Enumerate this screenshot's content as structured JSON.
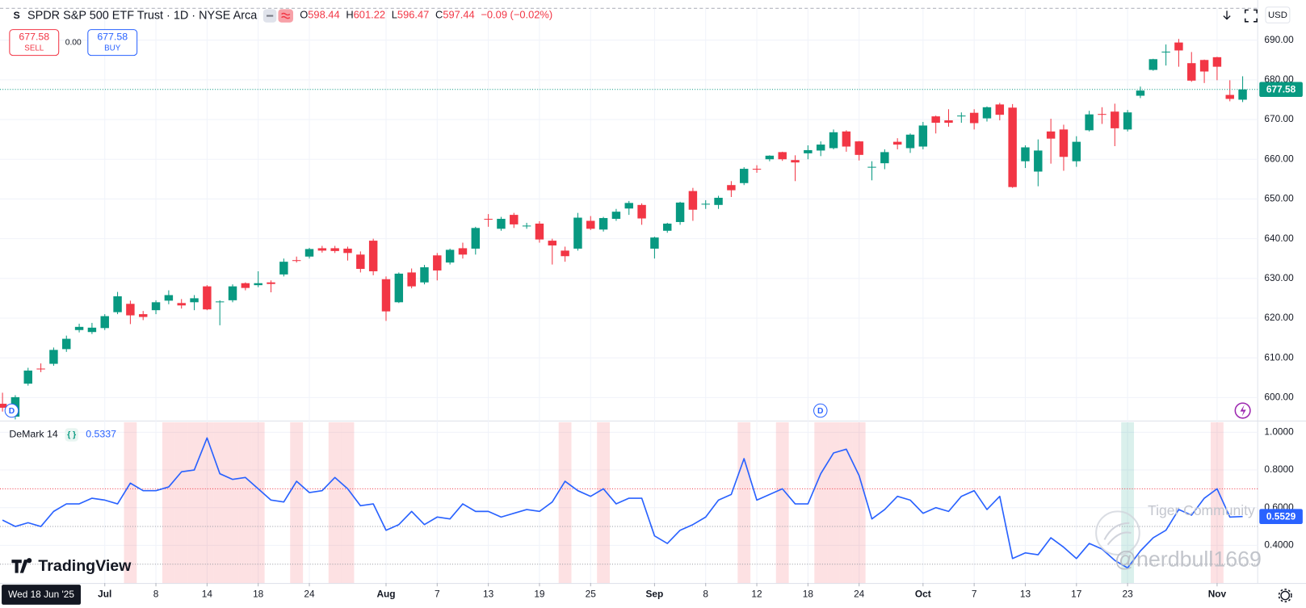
{
  "header": {
    "symbol_icon": "S",
    "title": "SPDR S&P 500 ETF Trust · 1D · NYSE Arca",
    "ohlc_keys": [
      "O",
      "H",
      "L",
      "C"
    ],
    "change": "−0.09 (−0.02%)"
  },
  "trade": {
    "sell": "SELL",
    "spread": "0.00",
    "buy": "BUY"
  },
  "currency": "USD",
  "dividend_marker": "D",
  "crosshair_date": "Wed 18 Jun '25",
  "brand": "TradingView",
  "watermark": [
    "Tiger Community",
    "@nerdbull1669"
  ],
  "chart_data": [
    {
      "type": "candlestick",
      "up_color": "#089981",
      "down_color": "#f23645",
      "x": [
        "2025-06-18",
        "2025-06-20",
        "2025-06-23",
        "2025-06-24",
        "2025-06-25",
        "2025-06-26",
        "2025-06-27",
        "2025-06-30",
        "2025-07-01",
        "2025-07-02",
        "2025-07-03",
        "2025-07-07",
        "2025-07-08",
        "2025-07-09",
        "2025-07-10",
        "2025-07-11",
        "2025-07-14",
        "2025-07-15",
        "2025-07-16",
        "2025-07-17",
        "2025-07-18",
        "2025-07-21",
        "2025-07-22",
        "2025-07-23",
        "2025-07-24",
        "2025-07-25",
        "2025-07-28",
        "2025-07-29",
        "2025-07-30",
        "2025-07-31",
        "2025-08-01",
        "2025-08-04",
        "2025-08-05",
        "2025-08-06",
        "2025-08-07",
        "2025-08-08",
        "2025-08-11",
        "2025-08-12",
        "2025-08-13",
        "2025-08-14",
        "2025-08-15",
        "2025-08-18",
        "2025-08-19",
        "2025-08-20",
        "2025-08-21",
        "2025-08-22",
        "2025-08-25",
        "2025-08-26",
        "2025-08-27",
        "2025-08-28",
        "2025-08-29",
        "2025-09-02",
        "2025-09-03",
        "2025-09-04",
        "2025-09-05",
        "2025-09-08",
        "2025-09-09",
        "2025-09-10",
        "2025-09-11",
        "2025-09-12",
        "2025-09-15",
        "2025-09-16",
        "2025-09-17",
        "2025-09-18",
        "2025-09-19",
        "2025-09-22",
        "2025-09-23",
        "2025-09-24",
        "2025-09-25",
        "2025-09-26",
        "2025-09-29",
        "2025-09-30",
        "2025-10-01",
        "2025-10-02",
        "2025-10-03",
        "2025-10-06",
        "2025-10-07",
        "2025-10-08",
        "2025-10-09",
        "2025-10-10",
        "2025-10-13",
        "2025-10-14",
        "2025-10-15",
        "2025-10-16",
        "2025-10-17",
        "2025-10-20",
        "2025-10-21",
        "2025-10-22",
        "2025-10-23",
        "2025-10-24",
        "2025-10-27",
        "2025-10-28",
        "2025-10-29",
        "2025-10-30",
        "2025-10-31",
        "2025-11-03",
        "2025-11-04",
        "2025-11-05"
      ],
      "open": [
        598.44,
        595.2,
        603.5,
        607.3,
        608.5,
        612.2,
        617.0,
        616.5,
        617.5,
        621.5,
        623.6,
        621.0,
        622.0,
        624.4,
        623.8,
        624.0,
        628.0,
        624.0,
        624.5,
        628.8,
        628.3,
        629.0,
        631.0,
        634.6,
        635.5,
        637.6,
        637.6,
        637.5,
        636.0,
        639.5,
        629.8,
        624.0,
        631.5,
        629.0,
        635.8,
        634.0,
        637.6,
        637.5,
        645.0,
        642.5,
        646.0,
        643.2,
        643.8,
        639.5,
        637.0,
        637.5,
        644.5,
        642.3,
        645.0,
        647.6,
        648.5,
        637.5,
        642.0,
        644.2,
        652.0,
        648.6,
        648.5,
        653.5,
        654.0,
        657.6,
        660.0,
        661.8,
        659.8,
        661.5,
        662.2,
        662.8,
        667.0,
        664.5,
        658.0,
        659.0,
        664.4,
        662.8,
        663.2,
        670.8,
        669.8,
        670.8,
        671.7,
        670.3,
        673.8,
        673.0,
        659.5,
        656.9,
        667.0,
        667.5,
        659.5,
        667.3,
        671.4,
        672.0,
        667.5,
        676.0,
        682.5,
        687.1,
        689.4,
        684.2,
        685.0,
        685.7,
        676.2,
        675.0
      ],
      "high": [
        601.22,
        600.6,
        607.5,
        608.6,
        612.6,
        615.6,
        618.6,
        618.8,
        621.0,
        626.6,
        624.4,
        621.8,
        624.5,
        627.0,
        624.8,
        625.8,
        628.3,
        624.5,
        628.5,
        629.0,
        631.8,
        629.5,
        635.0,
        635.5,
        637.7,
        638.2,
        638.2,
        638.0,
        636.8,
        640.0,
        630.5,
        631.5,
        632.5,
        633.4,
        636.4,
        637.5,
        639.0,
        643.0,
        646.2,
        645.5,
        646.5,
        644.0,
        644.4,
        640.0,
        638.0,
        646.5,
        645.7,
        645.5,
        647.5,
        649.5,
        648.9,
        640.5,
        644.0,
        649.3,
        652.8,
        649.7,
        650.8,
        654.5,
        658.0,
        658.5,
        661.0,
        661.9,
        661.0,
        663.5,
        664.5,
        667.5,
        667.3,
        664.6,
        659.5,
        662.5,
        665.3,
        666.5,
        669.4,
        671.0,
        672.6,
        671.8,
        672.6,
        673.3,
        674.2,
        673.9,
        663.5,
        665.0,
        670.2,
        668.7,
        665.8,
        672.2,
        673.1,
        674.0,
        672.4,
        678.3,
        685.3,
        688.9,
        690.3,
        687.0,
        685.1,
        685.8,
        679.9,
        680.9
      ],
      "low": [
        596.47,
        594.5,
        603.0,
        606.4,
        608.0,
        611.5,
        616.4,
        616.0,
        617.0,
        621.0,
        618.5,
        619.5,
        621.0,
        623.5,
        622.4,
        622.0,
        622.0,
        618.2,
        624.0,
        627.0,
        627.8,
        626.5,
        630.5,
        634.0,
        635.0,
        636.5,
        636.4,
        634.5,
        631.5,
        630.8,
        619.3,
        623.8,
        627.5,
        628.5,
        629.5,
        633.5,
        635.0,
        636.0,
        643.0,
        642.0,
        642.7,
        642.5,
        639.0,
        633.5,
        634.2,
        637.0,
        642.2,
        641.8,
        644.5,
        646.0,
        643.5,
        635.0,
        641.5,
        643.5,
        644.5,
        647.5,
        647.5,
        650.5,
        653.5,
        656.6,
        659.5,
        659.6,
        654.5,
        660.0,
        660.8,
        662.5,
        661.9,
        659.7,
        654.7,
        657.5,
        662.5,
        661.6,
        662.5,
        666.5,
        668.2,
        669.2,
        667.5,
        669.5,
        669.8,
        652.8,
        657.8,
        653.2,
        658.9,
        657.1,
        658.1,
        667.0,
        668.9,
        663.3,
        667.0,
        675.4,
        682.3,
        683.6,
        683.3,
        679.5,
        679.2,
        679.9,
        674.6,
        674.4
      ],
      "close": [
        597.44,
        600.1,
        606.8,
        607.2,
        612.0,
        614.8,
        617.8,
        617.6,
        620.5,
        625.5,
        620.7,
        620.3,
        624.0,
        625.8,
        623.2,
        625.0,
        622.2,
        624.2,
        628.0,
        627.6,
        628.8,
        628.6,
        634.2,
        634.4,
        637.4,
        637.0,
        636.9,
        636.4,
        632.4,
        631.8,
        621.7,
        631.2,
        628.0,
        632.8,
        632.0,
        637.2,
        636.0,
        642.7,
        644.9,
        645.0,
        643.6,
        643.3,
        639.8,
        638.3,
        635.6,
        645.3,
        642.5,
        645.2,
        646.8,
        649.0,
        645.1,
        640.3,
        643.8,
        649.1,
        647.3,
        648.8,
        650.3,
        652.2,
        657.6,
        657.4,
        660.9,
        660.0,
        659.2,
        662.3,
        663.7,
        666.8,
        663.2,
        661.1,
        658.1,
        661.8,
        663.7,
        666.2,
        668.5,
        669.2,
        669.2,
        671.0,
        669.1,
        673.1,
        671.2,
        653.0,
        663.0,
        662.2,
        665.2,
        660.6,
        664.4,
        671.3,
        671.3,
        667.8,
        671.8,
        677.3,
        685.2,
        687.1,
        687.4,
        679.8,
        682.1,
        683.3,
        675.2,
        677.58
      ],
      "ylim": [
        594.2,
        700.1
      ],
      "yticks": [
        {
          "value": 600,
          "label": "600.00"
        },
        {
          "value": 610,
          "label": "610.00"
        },
        {
          "value": 620,
          "label": "620.00"
        },
        {
          "value": 630,
          "label": "630.00"
        },
        {
          "value": 640,
          "label": "640.00"
        },
        {
          "value": 650,
          "label": "650.00"
        },
        {
          "value": 660,
          "label": "660.00"
        },
        {
          "value": 670,
          "label": "670.00"
        },
        {
          "value": 680,
          "label": "680.00"
        },
        {
          "value": 690,
          "label": "690.00"
        }
      ],
      "xticks": [
        {
          "value": "2025-07-01",
          "label": "Jul"
        },
        {
          "value": "2025-07-08",
          "label": "8"
        },
        {
          "value": "2025-07-14",
          "label": "14"
        },
        {
          "value": "2025-07-18",
          "label": "18"
        },
        {
          "value": "2025-07-24",
          "label": "24"
        },
        {
          "value": "2025-08-01",
          "label": "Aug"
        },
        {
          "value": "2025-08-07",
          "label": "7"
        },
        {
          "value": "2025-08-13",
          "label": "13"
        },
        {
          "value": "2025-08-19",
          "label": "19"
        },
        {
          "value": "2025-08-25",
          "label": "25"
        },
        {
          "value": "2025-09-02",
          "label": "Sep"
        },
        {
          "value": "2025-09-08",
          "label": "8"
        },
        {
          "value": "2025-09-12",
          "label": "12"
        },
        {
          "value": "2025-09-18",
          "label": "18"
        },
        {
          "value": "2025-09-24",
          "label": "24"
        },
        {
          "value": "2025-10-01",
          "label": "Oct"
        },
        {
          "value": "2025-10-07",
          "label": "7"
        },
        {
          "value": "2025-10-13",
          "label": "13"
        },
        {
          "value": "2025-10-17",
          "label": "17"
        },
        {
          "value": "2025-10-23",
          "label": "23"
        },
        {
          "value": "2025-11-03",
          "label": "Nov"
        }
      ],
      "grid": true,
      "last_price_line": true
    },
    {
      "type": "line",
      "series": [
        {
          "name": "DeMark 14",
          "color": "#2962ff",
          "values": [
            0.5337,
            0.5,
            0.52,
            0.5,
            0.58,
            0.62,
            0.62,
            0.65,
            0.64,
            0.62,
            0.73,
            0.69,
            0.69,
            0.71,
            0.79,
            0.8,
            0.97,
            0.78,
            0.75,
            0.76,
            0.7,
            0.64,
            0.63,
            0.74,
            0.68,
            0.69,
            0.76,
            0.7,
            0.61,
            0.62,
            0.48,
            0.51,
            0.58,
            0.51,
            0.55,
            0.54,
            0.62,
            0.58,
            0.58,
            0.55,
            0.57,
            0.59,
            0.58,
            0.63,
            0.74,
            0.69,
            0.66,
            0.7,
            0.62,
            0.65,
            0.65,
            0.45,
            0.41,
            0.48,
            0.51,
            0.55,
            0.64,
            0.67,
            0.86,
            0.64,
            0.67,
            0.7,
            0.62,
            0.62,
            0.78,
            0.89,
            0.91,
            0.77,
            0.54,
            0.59,
            0.66,
            0.64,
            0.57,
            0.6,
            0.58,
            0.66,
            0.69,
            0.59,
            0.66,
            0.33,
            0.36,
            0.35,
            0.44,
            0.39,
            0.33,
            0.41,
            0.38,
            0.32,
            0.28,
            0.37,
            0.44,
            0.48,
            0.59,
            0.56,
            0.65,
            0.7,
            0.55,
            0.5529
          ]
        }
      ],
      "ylim": [
        0.2,
        1.053
      ],
      "yticks": [
        {
          "value": 0.4,
          "label": "0.4000"
        },
        {
          "value": 0.6,
          "label": "0.6000"
        },
        {
          "value": 0.8,
          "label": "0.8000"
        },
        {
          "value": 1.0,
          "label": "1.0000"
        }
      ],
      "levels": {
        "upper": 0.7,
        "mid": 0.5,
        "lower": 0.3
      },
      "upper_band_color": "rgba(242,54,69,0.15)",
      "lower_band_color": "rgba(8,153,129,0.15)",
      "grid": true
    }
  ]
}
